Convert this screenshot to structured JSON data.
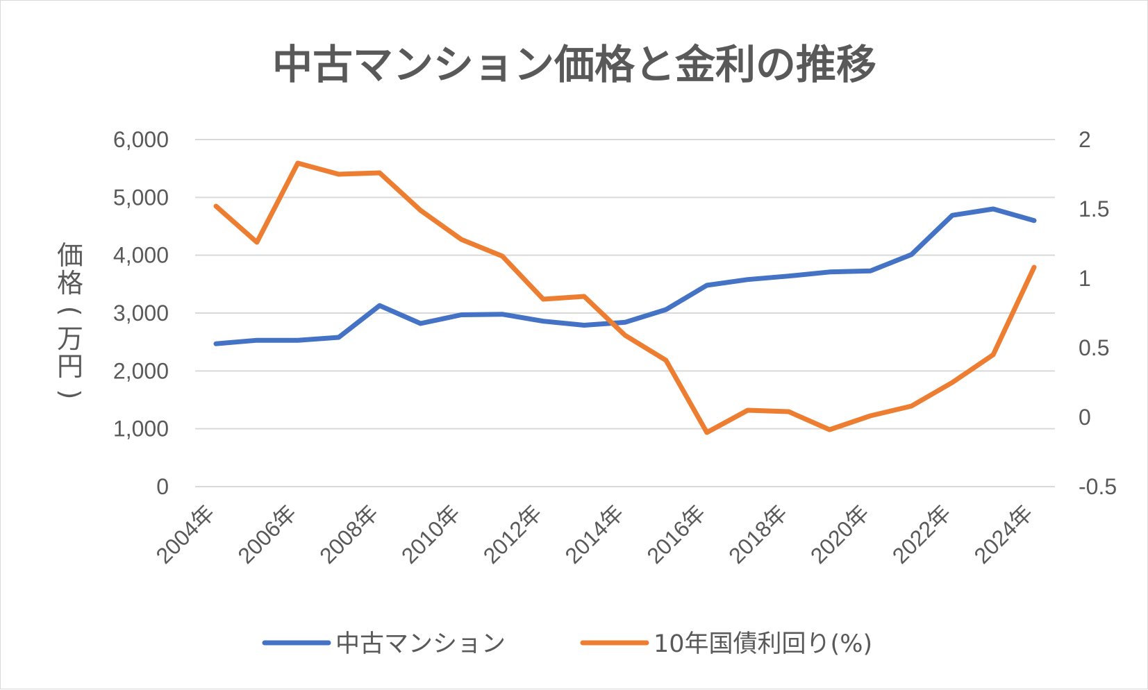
{
  "chart_data": {
    "type": "line",
    "title": "中古マンション価格と金利の推移",
    "ylabel": "価格(万円)",
    "y2label": "",
    "xlabel": "",
    "x": [
      "2004年",
      "2005年",
      "2006年",
      "2007年",
      "2008年",
      "2009年",
      "2010年",
      "2011年",
      "2012年",
      "2013年",
      "2014年",
      "2015年",
      "2016年",
      "2017年",
      "2018年",
      "2019年",
      "2020年",
      "2021年",
      "2022年",
      "2023年",
      "2024年"
    ],
    "x_tick_labels": [
      "2004年",
      "2006年",
      "2008年",
      "2010年",
      "2012年",
      "2014年",
      "2016年",
      "2018年",
      "2020年",
      "2022年",
      "2024年"
    ],
    "ylim": [
      0,
      6000
    ],
    "y_ticks": [
      0,
      1000,
      2000,
      3000,
      4000,
      5000,
      6000
    ],
    "y_tick_labels": [
      "0",
      "1,000",
      "2,000",
      "3,000",
      "4,000",
      "5,000",
      "6,000"
    ],
    "y2lim": [
      -0.5,
      2
    ],
    "y2_ticks": [
      -0.5,
      0,
      0.5,
      1,
      1.5,
      2
    ],
    "y2_tick_labels": [
      "-0.5",
      "0",
      "0.5",
      "1",
      "1.5",
      "2"
    ],
    "grid": true,
    "legend_position": "bottom",
    "series": [
      {
        "name": "中古マンション",
        "axis": "left",
        "color": "#4472c4",
        "values": [
          2470,
          2530,
          2530,
          2580,
          3130,
          2820,
          2970,
          2980,
          2860,
          2790,
          2840,
          3060,
          3480,
          3580,
          3640,
          3710,
          3730,
          4010,
          4690,
          4800,
          4600
        ]
      },
      {
        "name": "10年国債利回り(%)",
        "axis": "right",
        "color": "#ed7d31",
        "values": [
          1.52,
          1.26,
          1.83,
          1.75,
          1.76,
          1.49,
          1.28,
          1.16,
          0.85,
          0.87,
          0.59,
          0.41,
          -0.11,
          0.05,
          0.04,
          -0.09,
          0.01,
          0.08,
          0.25,
          0.45,
          1.08
        ]
      }
    ]
  }
}
